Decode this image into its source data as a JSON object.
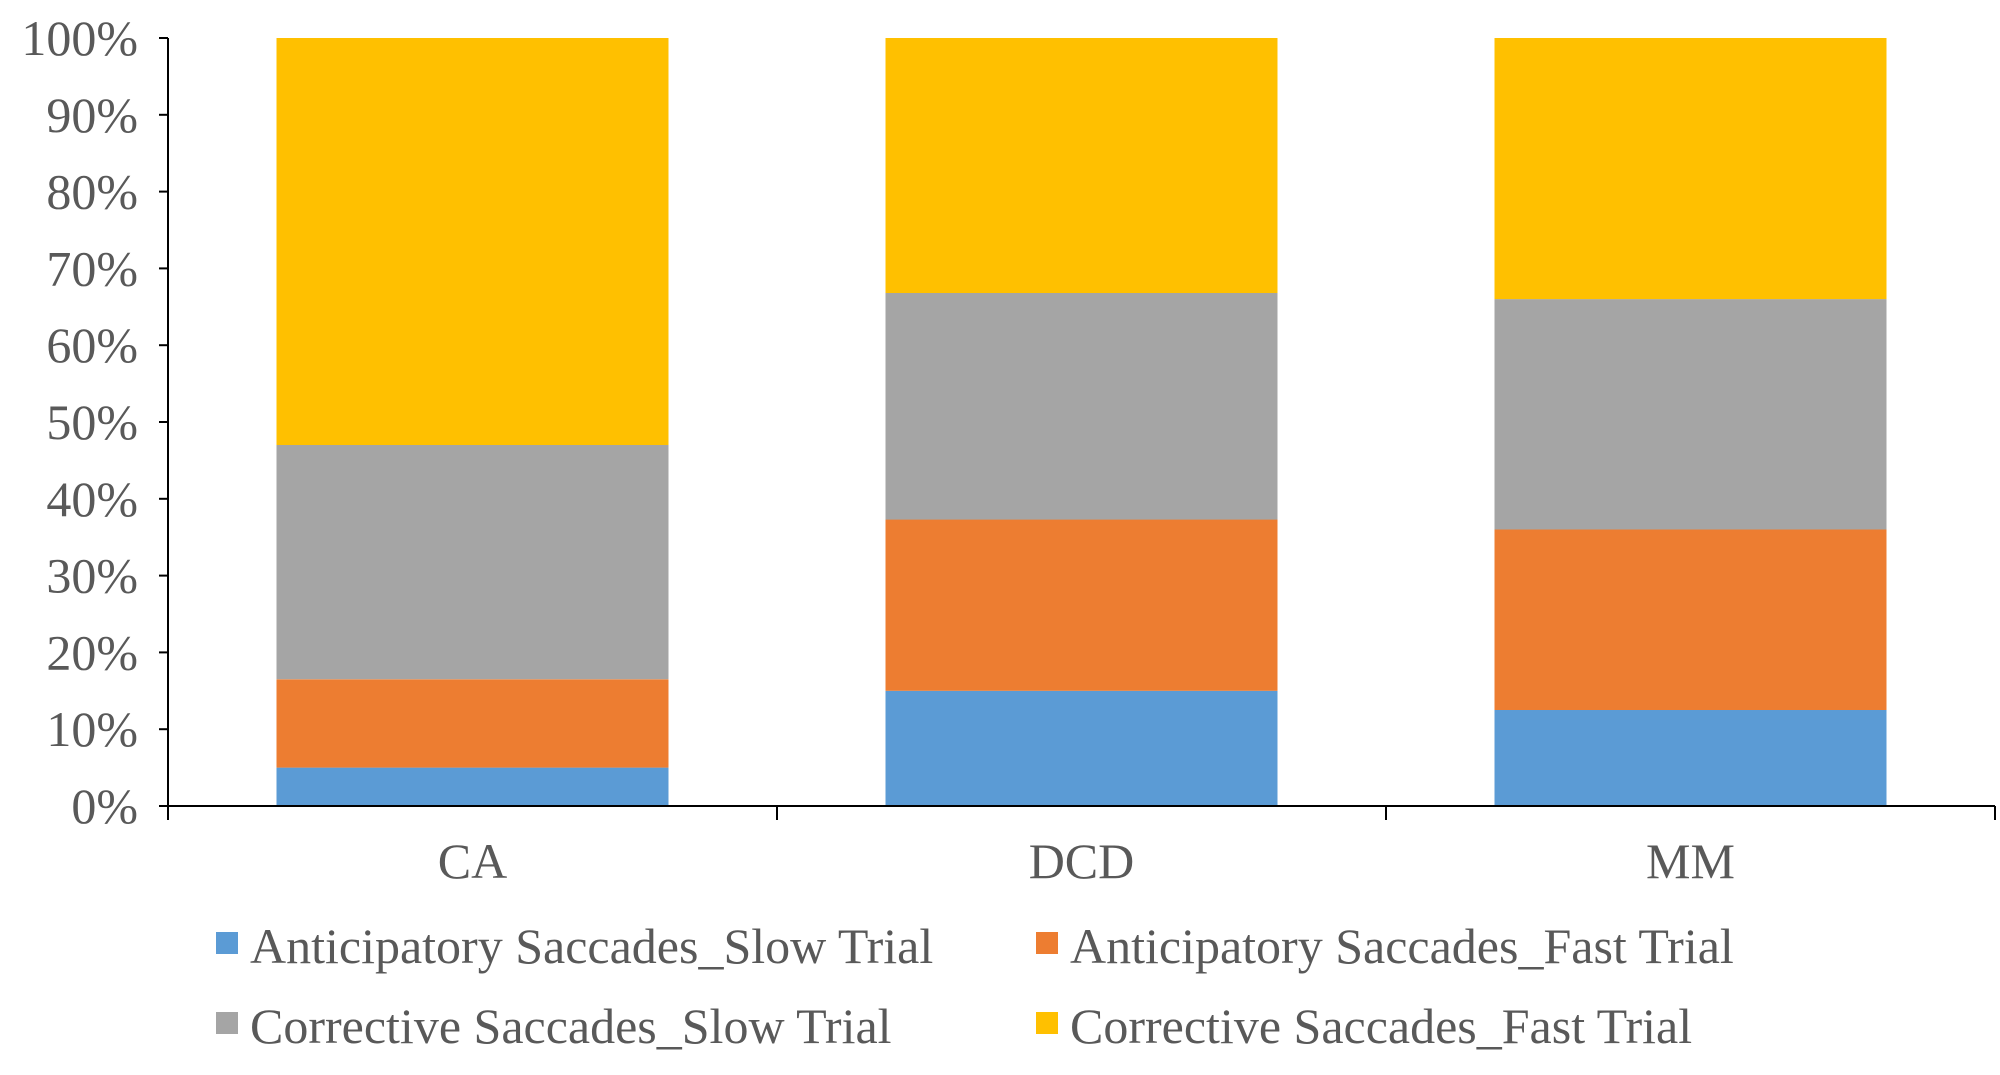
{
  "chart_data": {
    "type": "bar",
    "stacked": true,
    "percent": true,
    "categories": [
      "CA",
      "DCD",
      "MM"
    ],
    "series": [
      {
        "name": "Anticipatory Saccades_Slow Trial",
        "color": "#5B9BD5",
        "values": [
          5,
          15,
          12.5
        ]
      },
      {
        "name": "Anticipatory Saccades_Fast Trial",
        "color": "#ED7D31",
        "values": [
          11.5,
          22.3,
          23.5
        ]
      },
      {
        "name": "Corrective Saccades_Slow Trial",
        "color": "#A5A5A5",
        "values": [
          30.5,
          29.5,
          30
        ]
      },
      {
        "name": "Corrective Saccades_Fast Trial",
        "color": "#FFC000",
        "values": [
          53,
          33.2,
          34
        ]
      }
    ],
    "y_ticks": [
      "0%",
      "10%",
      "20%",
      "30%",
      "40%",
      "50%",
      "60%",
      "70%",
      "80%",
      "90%",
      "100%"
    ],
    "ylim": [
      0,
      100
    ],
    "grid": false,
    "legend_position": "bottom",
    "axis_color": "#000000"
  }
}
